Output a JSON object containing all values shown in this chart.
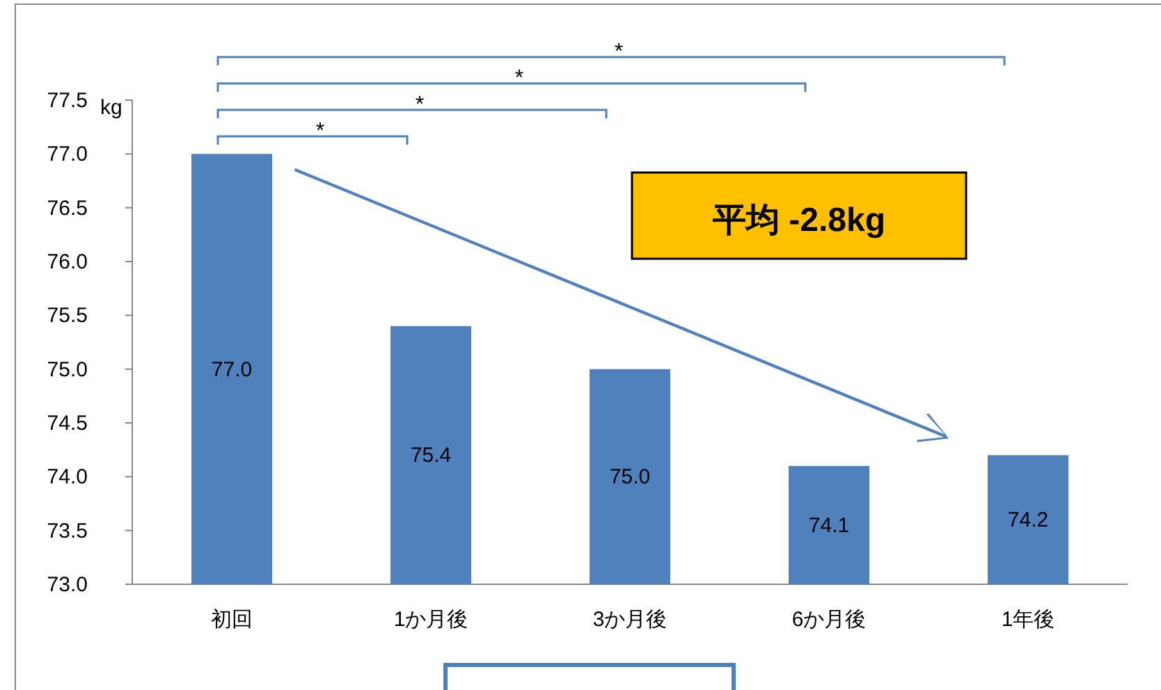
{
  "chart_data": {
    "type": "bar",
    "ylabel": "kg",
    "categories": [
      "初回",
      "1か月後",
      "3か月後",
      "6か月後",
      "1年後"
    ],
    "values": [
      77.0,
      75.4,
      75.0,
      74.1,
      74.2
    ],
    "color": "#4f81bd",
    "value_labels": [
      "77.0",
      "75.4",
      "75.0",
      "74.1",
      "74.2"
    ],
    "grid": false,
    "ylim": [
      73,
      77.5
    ],
    "yticks": [
      {
        "value": 73,
        "label": "73.0"
      },
      {
        "value": 73.5,
        "label": "73.5"
      },
      {
        "value": 74,
        "label": "74.0"
      },
      {
        "value": 74.5,
        "label": "74.5"
      },
      {
        "value": 75,
        "label": "75.0"
      },
      {
        "value": 75.5,
        "label": "75.5"
      },
      {
        "value": 76,
        "label": "76.0"
      },
      {
        "value": 76.5,
        "label": "76.5"
      },
      {
        "value": 77,
        "label": "77.0"
      },
      {
        "value": 77.5,
        "label": "77.5"
      }
    ],
    "annotations": [
      "*",
      "*",
      "*",
      "*",
      "平均 -2.8kg"
    ]
  }
}
